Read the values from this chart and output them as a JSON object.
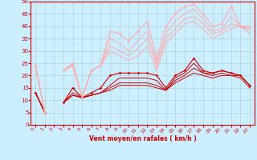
{
  "xlabel": "Vent moyen/en rafales ( km/h )",
  "xlim": [
    -0.5,
    23.5
  ],
  "ylim": [
    0,
    50
  ],
  "xticks": [
    0,
    1,
    2,
    3,
    4,
    5,
    6,
    7,
    8,
    9,
    10,
    11,
    12,
    13,
    14,
    15,
    16,
    17,
    18,
    19,
    20,
    21,
    22,
    23
  ],
  "yticks": [
    0,
    5,
    10,
    15,
    20,
    25,
    30,
    35,
    40,
    45,
    50
  ],
  "bg_color": "#cceeff",
  "grid_color": "#aacccc",
  "lines": [
    {
      "x": [
        0,
        1,
        2,
        3,
        4,
        5,
        6,
        7,
        8,
        9,
        10,
        11,
        12,
        13,
        14,
        15,
        16,
        17,
        18,
        19,
        20,
        21,
        22,
        23
      ],
      "y": [
        13,
        5,
        null,
        9,
        15,
        11,
        13,
        15,
        20,
        21,
        21,
        21,
        21,
        20,
        15,
        20,
        22,
        27,
        22,
        21,
        22,
        21,
        20,
        16
      ],
      "color": "#cc0000",
      "lw": 0.8,
      "marker": "D",
      "ms": 1.5
    },
    {
      "x": [
        0,
        1,
        2,
        3,
        4,
        5,
        6,
        7,
        8,
        9,
        10,
        11,
        12,
        13,
        14,
        15,
        16,
        17,
        18,
        19,
        20,
        21,
        22,
        23
      ],
      "y": [
        13,
        5,
        null,
        9,
        13,
        11,
        12,
        13,
        16,
        19,
        19,
        19,
        19,
        18,
        14,
        19,
        21,
        25,
        21,
        21,
        22,
        21,
        20,
        16
      ],
      "color": "#cc0000",
      "lw": 0.7,
      "marker": null,
      "ms": 0
    },
    {
      "x": [
        0,
        1,
        2,
        3,
        4,
        5,
        6,
        7,
        8,
        9,
        10,
        11,
        12,
        13,
        14,
        15,
        16,
        17,
        18,
        19,
        20,
        21,
        22,
        23
      ],
      "y": [
        13,
        5,
        null,
        9,
        12,
        11,
        12,
        13,
        15,
        17,
        17,
        17,
        17,
        16,
        14,
        18,
        20,
        23,
        21,
        20,
        21,
        20,
        20,
        16
      ],
      "color": "#cc0000",
      "lw": 0.7,
      "marker": null,
      "ms": 0
    },
    {
      "x": [
        0,
        1,
        2,
        3,
        4,
        5,
        6,
        7,
        8,
        9,
        10,
        11,
        12,
        13,
        14,
        15,
        16,
        17,
        18,
        19,
        20,
        21,
        22,
        23
      ],
      "y": [
        13,
        5,
        null,
        9,
        12,
        11,
        12,
        13,
        14,
        16,
        16,
        16,
        16,
        15,
        14,
        17,
        19,
        21,
        20,
        19,
        20,
        20,
        19,
        15
      ],
      "color": "#cc0000",
      "lw": 0.7,
      "marker": null,
      "ms": 0
    },
    {
      "x": [
        0,
        1,
        2,
        3,
        4,
        5,
        6,
        7,
        8,
        9,
        10,
        11,
        12,
        13,
        14,
        15,
        16,
        17,
        18,
        19,
        20,
        21,
        22,
        23
      ],
      "y": [
        24,
        5,
        null,
        22,
        25,
        11,
        22,
        24,
        38,
        37,
        34,
        38,
        42,
        27,
        40,
        45,
        48,
        49,
        45,
        40,
        41,
        48,
        40,
        40
      ],
      "color": "#ffaaaa",
      "lw": 0.8,
      "marker": "D",
      "ms": 1.5
    },
    {
      "x": [
        0,
        1,
        2,
        3,
        4,
        5,
        6,
        7,
        8,
        9,
        10,
        11,
        12,
        13,
        14,
        15,
        16,
        17,
        18,
        19,
        20,
        21,
        22,
        23
      ],
      "y": [
        24,
        5,
        null,
        22,
        25,
        11,
        22,
        24,
        35,
        33,
        30,
        34,
        38,
        25,
        37,
        42,
        45,
        47,
        43,
        38,
        39,
        44,
        40,
        39
      ],
      "color": "#ffaaaa",
      "lw": 0.7,
      "marker": null,
      "ms": 0
    },
    {
      "x": [
        0,
        1,
        2,
        3,
        4,
        5,
        6,
        7,
        8,
        9,
        10,
        11,
        12,
        13,
        14,
        15,
        16,
        17,
        18,
        19,
        20,
        21,
        22,
        23
      ],
      "y": [
        24,
        5,
        null,
        22,
        24,
        11,
        22,
        24,
        32,
        30,
        28,
        31,
        35,
        24,
        35,
        39,
        43,
        44,
        41,
        37,
        38,
        41,
        40,
        38
      ],
      "color": "#ffaaaa",
      "lw": 0.7,
      "marker": null,
      "ms": 0
    },
    {
      "x": [
        0,
        1,
        2,
        3,
        4,
        5,
        6,
        7,
        8,
        9,
        10,
        11,
        12,
        13,
        14,
        15,
        16,
        17,
        18,
        19,
        20,
        21,
        22,
        23
      ],
      "y": [
        24,
        5,
        null,
        22,
        24,
        11,
        22,
        24,
        30,
        28,
        26,
        28,
        32,
        22,
        33,
        37,
        41,
        42,
        39,
        35,
        37,
        39,
        40,
        37
      ],
      "color": "#ffaaaa",
      "lw": 0.7,
      "marker": null,
      "ms": 0
    }
  ]
}
